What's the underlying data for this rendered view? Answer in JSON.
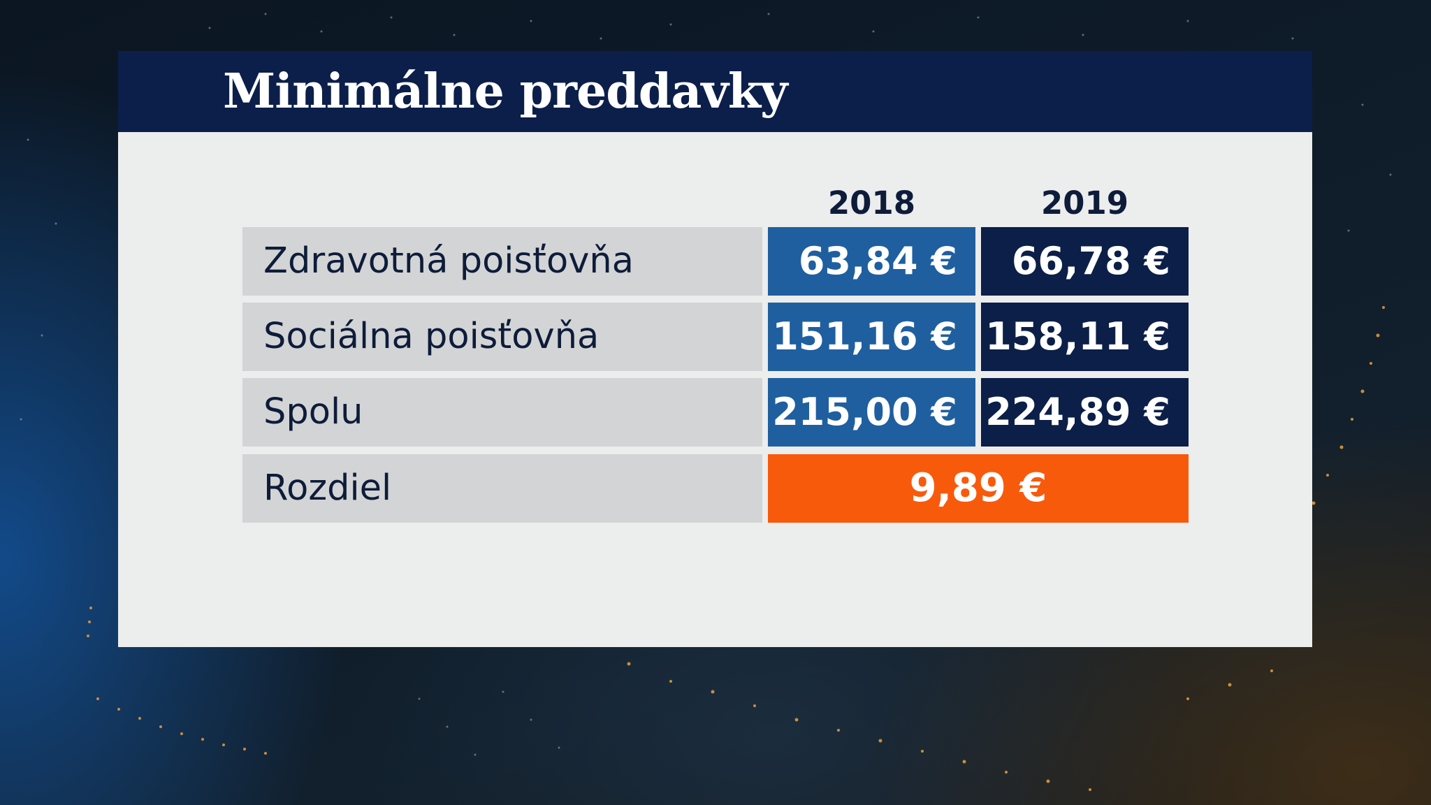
{
  "title": "Minimálne preddavky",
  "columns": [
    "2018",
    "2019"
  ],
  "rows": [
    {
      "label": "Zdravotná poisťovňa",
      "v2018": "63,84 €",
      "v2019": "66,78 €"
    },
    {
      "label": "Sociálna poisťovňa",
      "v2018": "151,16 €",
      "v2019": "158,11 €"
    },
    {
      "label": "Spolu",
      "v2018": "215,00 €",
      "v2019": "224,89 €"
    }
  ],
  "difference": {
    "label": "Rozdiel",
    "value": "9,89 €"
  },
  "colors": {
    "header_bg": "#0c1f4a",
    "cell_2018": "#1f5f9f",
    "cell_2019": "#0c1f48",
    "difference": "#f85a0c",
    "label_bg": "#d3d4d5",
    "panel_bg": "#eceded"
  }
}
